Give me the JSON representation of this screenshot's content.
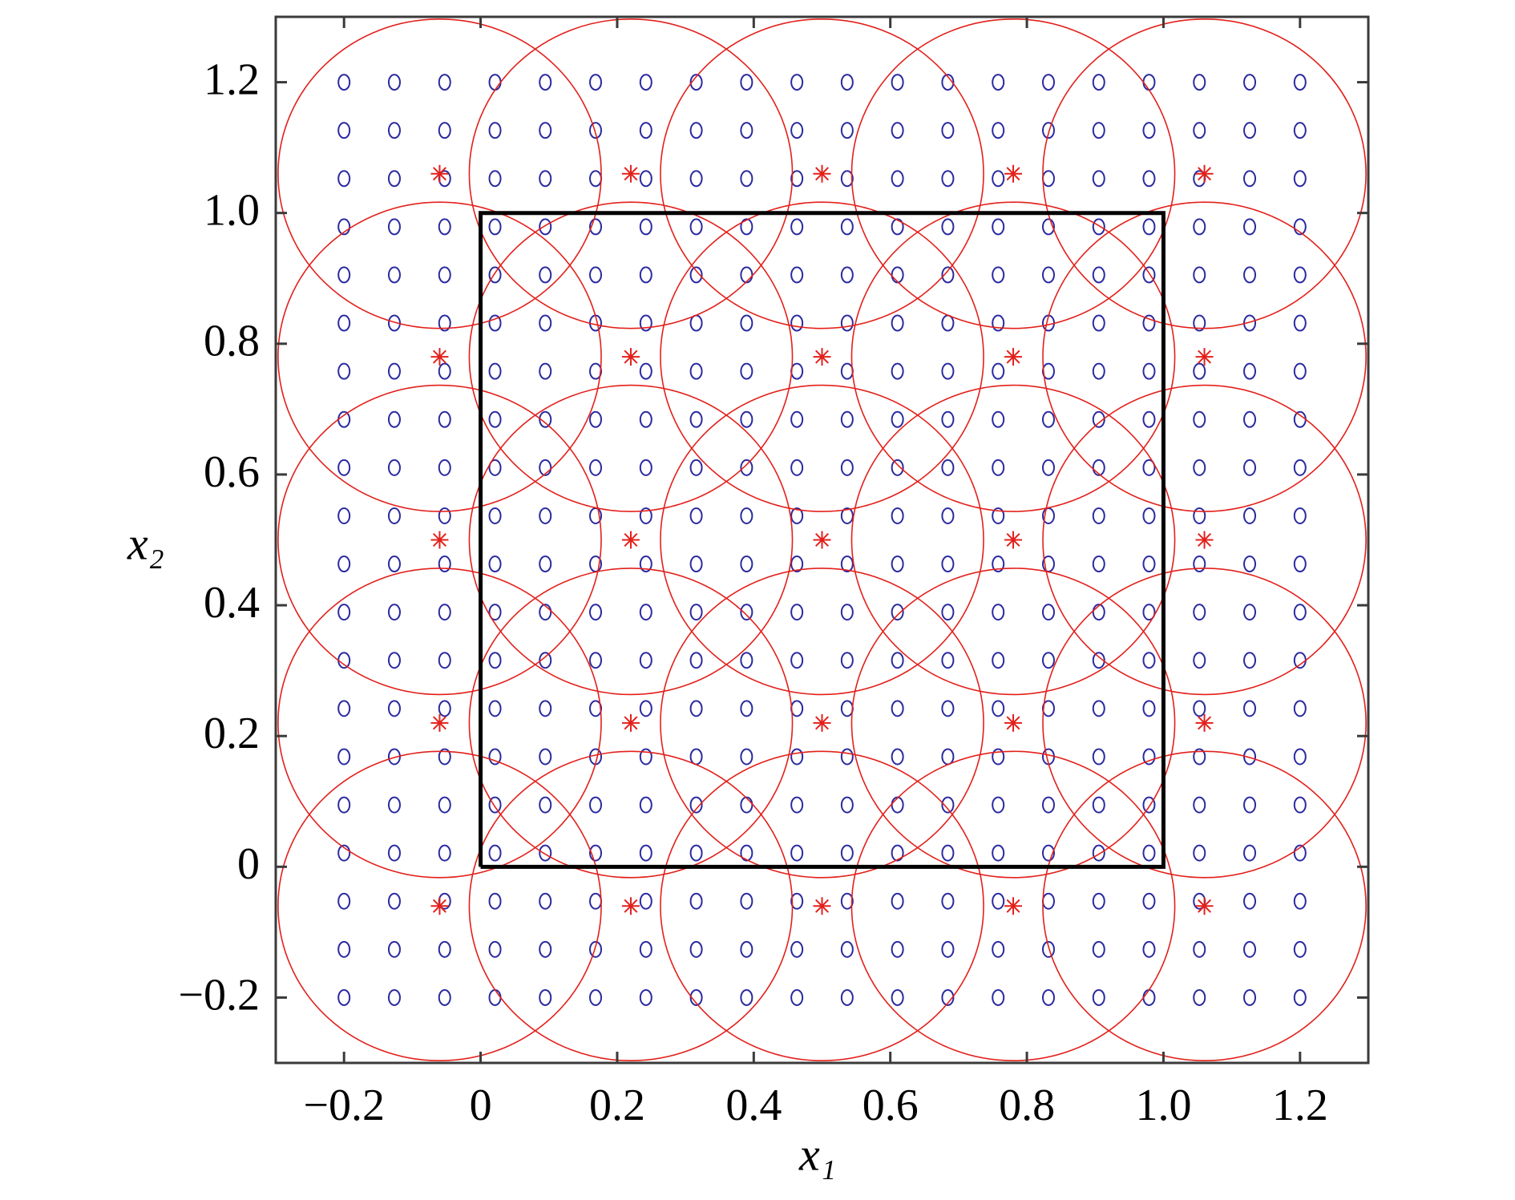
{
  "chart_data": {
    "type": "scatter",
    "xlabel": "x₁",
    "ylabel": "x₂",
    "xlim": [
      -0.3,
      1.3
    ],
    "ylim": [
      -0.3,
      1.3
    ],
    "xticks": [
      {
        "value": -0.2,
        "label": "−0.2"
      },
      0,
      0.2,
      0.4,
      0.6,
      0.8,
      {
        "value": 1,
        "label": "1.0"
      },
      1.2
    ],
    "yticks": [
      {
        "value": -0.2,
        "label": "−0.2"
      },
      0,
      0.2,
      0.4,
      0.6,
      0.8,
      {
        "value": 1,
        "label": "1.0"
      },
      1.2
    ],
    "grid": false,
    "series": [
      {
        "marker": "o",
        "color": "#2a2aa0",
        "x": [
          -0.2,
          -0.1263,
          -0.0526,
          0.0211,
          0.0947,
          0.1684,
          0.2421,
          0.3158,
          0.3895,
          0.4632,
          0.5368,
          0.6105,
          0.6842,
          0.7579,
          0.8316,
          0.9053,
          0.9789,
          1.0526,
          1.1263,
          1.2,
          -0.2,
          -0.1263,
          -0.0526,
          0.0211,
          0.0947,
          0.1684,
          0.2421,
          0.3158,
          0.3895,
          0.4632,
          0.5368,
          0.6105,
          0.6842,
          0.7579,
          0.8316,
          0.9053,
          0.9789,
          1.0526,
          1.1263,
          1.2,
          -0.2,
          -0.1263,
          -0.0526,
          0.0211,
          0.0947,
          0.1684,
          0.2421,
          0.3158,
          0.3895,
          0.4632,
          0.5368,
          0.6105,
          0.6842,
          0.7579,
          0.8316,
          0.9053,
          0.9789,
          1.0526,
          1.1263,
          1.2,
          -0.2,
          -0.1263,
          -0.0526,
          0.0211,
          0.0947,
          0.1684,
          0.2421,
          0.3158,
          0.3895,
          0.4632,
          0.5368,
          0.6105,
          0.6842,
          0.7579,
          0.8316,
          0.9053,
          0.9789,
          1.0526,
          1.1263,
          1.2,
          -0.2,
          -0.1263,
          -0.0526,
          0.0211,
          0.0947,
          0.1684,
          0.2421,
          0.3158,
          0.3895,
          0.4632,
          0.5368,
          0.6105,
          0.6842,
          0.7579,
          0.8316,
          0.9053,
          0.9789,
          1.0526,
          1.1263,
          1.2,
          -0.2,
          -0.1263,
          -0.0526,
          0.0211,
          0.0947,
          0.1684,
          0.2421,
          0.3158,
          0.3895,
          0.4632,
          0.5368,
          0.6105,
          0.6842,
          0.7579,
          0.8316,
          0.9053,
          0.9789,
          1.0526,
          1.1263,
          1.2,
          -0.2,
          -0.1263,
          -0.0526,
          0.0211,
          0.0947,
          0.1684,
          0.2421,
          0.3158,
          0.3895,
          0.4632,
          0.5368,
          0.6105,
          0.6842,
          0.7579,
          0.8316,
          0.9053,
          0.9789,
          1.0526,
          1.1263,
          1.2,
          -0.2,
          -0.1263,
          -0.0526,
          0.0211,
          0.0947,
          0.1684,
          0.2421,
          0.3158,
          0.3895,
          0.4632,
          0.5368,
          0.6105,
          0.6842,
          0.7579,
          0.8316,
          0.9053,
          0.9789,
          1.0526,
          1.1263,
          1.2,
          -0.2,
          -0.1263,
          -0.0526,
          0.0211,
          0.0947,
          0.1684,
          0.2421,
          0.3158,
          0.3895,
          0.4632,
          0.5368,
          0.6105,
          0.6842,
          0.7579,
          0.8316,
          0.9053,
          0.9789,
          1.0526,
          1.1263,
          1.2,
          -0.2,
          -0.1263,
          -0.0526,
          0.0211,
          0.0947,
          0.1684,
          0.2421,
          0.3158,
          0.3895,
          0.4632,
          0.5368,
          0.6105,
          0.6842,
          0.7579,
          0.8316,
          0.9053,
          0.9789,
          1.0526,
          1.1263,
          1.2,
          -0.2,
          -0.1263,
          -0.0526,
          0.0211,
          0.0947,
          0.1684,
          0.2421,
          0.3158,
          0.3895,
          0.4632,
          0.5368,
          0.6105,
          0.6842,
          0.7579,
          0.8316,
          0.9053,
          0.9789,
          1.0526,
          1.1263,
          1.2,
          -0.2,
          -0.1263,
          -0.0526,
          0.0211,
          0.0947,
          0.1684,
          0.2421,
          0.3158,
          0.3895,
          0.4632,
          0.5368,
          0.6105,
          0.6842,
          0.7579,
          0.8316,
          0.9053,
          0.9789,
          1.0526,
          1.1263,
          1.2,
          -0.2,
          -0.1263,
          -0.0526,
          0.0211,
          0.0947,
          0.1684,
          0.2421,
          0.3158,
          0.3895,
          0.4632,
          0.5368,
          0.6105,
          0.6842,
          0.7579,
          0.8316,
          0.9053,
          0.9789,
          1.0526,
          1.1263,
          1.2,
          -0.2,
          -0.1263,
          -0.0526,
          0.0211,
          0.0947,
          0.1684,
          0.2421,
          0.3158,
          0.3895,
          0.4632,
          0.5368,
          0.6105,
          0.6842,
          0.7579,
          0.8316,
          0.9053,
          0.9789,
          1.0526,
          1.1263,
          1.2,
          -0.2,
          -0.1263,
          -0.0526,
          0.0211,
          0.0947,
          0.1684,
          0.2421,
          0.3158,
          0.3895,
          0.4632,
          0.5368,
          0.6105,
          0.6842,
          0.7579,
          0.8316,
          0.9053,
          0.9789,
          1.0526,
          1.1263,
          1.2,
          -0.2,
          -0.1263,
          -0.0526,
          0.0211,
          0.0947,
          0.1684,
          0.2421,
          0.3158,
          0.3895,
          0.4632,
          0.5368,
          0.6105,
          0.6842,
          0.7579,
          0.8316,
          0.9053,
          0.9789,
          1.0526,
          1.1263,
          1.2,
          -0.2,
          -0.1263,
          -0.0526,
          0.0211,
          0.0947,
          0.1684,
          0.2421,
          0.3158,
          0.3895,
          0.4632,
          0.5368,
          0.6105,
          0.6842,
          0.7579,
          0.8316,
          0.9053,
          0.9789,
          1.0526,
          1.1263,
          1.2,
          -0.2,
          -0.1263,
          -0.0526,
          0.0211,
          0.0947,
          0.1684,
          0.2421,
          0.3158,
          0.3895,
          0.4632,
          0.5368,
          0.6105,
          0.6842,
          0.7579,
          0.8316,
          0.9053,
          0.9789,
          1.0526,
          1.1263,
          1.2,
          -0.2,
          -0.1263,
          -0.0526,
          0.0211,
          0.0947,
          0.1684,
          0.2421,
          0.3158,
          0.3895,
          0.4632,
          0.5368,
          0.6105,
          0.6842,
          0.7579,
          0.8316,
          0.9053,
          0.9789,
          1.0526,
          1.1263,
          1.2,
          -0.2,
          -0.1263,
          -0.0526,
          0.0211,
          0.0947,
          0.1684,
          0.2421,
          0.3158,
          0.3895,
          0.4632,
          0.5368,
          0.6105,
          0.6842,
          0.7579,
          0.8316,
          0.9053,
          0.9789,
          1.0526,
          1.1263,
          1.2
        ],
        "values": [
          -0.2,
          -0.2,
          -0.2,
          -0.2,
          -0.2,
          -0.2,
          -0.2,
          -0.2,
          -0.2,
          -0.2,
          -0.2,
          -0.2,
          -0.2,
          -0.2,
          -0.2,
          -0.2,
          -0.2,
          -0.2,
          -0.2,
          -0.2,
          -0.1263,
          -0.1263,
          -0.1263,
          -0.1263,
          -0.1263,
          -0.1263,
          -0.1263,
          -0.1263,
          -0.1263,
          -0.1263,
          -0.1263,
          -0.1263,
          -0.1263,
          -0.1263,
          -0.1263,
          -0.1263,
          -0.1263,
          -0.1263,
          -0.1263,
          -0.1263,
          -0.0526,
          -0.0526,
          -0.0526,
          -0.0526,
          -0.0526,
          -0.0526,
          -0.0526,
          -0.0526,
          -0.0526,
          -0.0526,
          -0.0526,
          -0.0526,
          -0.0526,
          -0.0526,
          -0.0526,
          -0.0526,
          -0.0526,
          -0.0526,
          -0.0526,
          -0.0526,
          0.0211,
          0.0211,
          0.0211,
          0.0211,
          0.0211,
          0.0211,
          0.0211,
          0.0211,
          0.0211,
          0.0211,
          0.0211,
          0.0211,
          0.0211,
          0.0211,
          0.0211,
          0.0211,
          0.0211,
          0.0211,
          0.0211,
          0.0211,
          0.0947,
          0.0947,
          0.0947,
          0.0947,
          0.0947,
          0.0947,
          0.0947,
          0.0947,
          0.0947,
          0.0947,
          0.0947,
          0.0947,
          0.0947,
          0.0947,
          0.0947,
          0.0947,
          0.0947,
          0.0947,
          0.0947,
          0.0947,
          0.1684,
          0.1684,
          0.1684,
          0.1684,
          0.1684,
          0.1684,
          0.1684,
          0.1684,
          0.1684,
          0.1684,
          0.1684,
          0.1684,
          0.1684,
          0.1684,
          0.1684,
          0.1684,
          0.1684,
          0.1684,
          0.1684,
          0.1684,
          0.2421,
          0.2421,
          0.2421,
          0.2421,
          0.2421,
          0.2421,
          0.2421,
          0.2421,
          0.2421,
          0.2421,
          0.2421,
          0.2421,
          0.2421,
          0.2421,
          0.2421,
          0.2421,
          0.2421,
          0.2421,
          0.2421,
          0.2421,
          0.3158,
          0.3158,
          0.3158,
          0.3158,
          0.3158,
          0.3158,
          0.3158,
          0.3158,
          0.3158,
          0.3158,
          0.3158,
          0.3158,
          0.3158,
          0.3158,
          0.3158,
          0.3158,
          0.3158,
          0.3158,
          0.3158,
          0.3158,
          0.3895,
          0.3895,
          0.3895,
          0.3895,
          0.3895,
          0.3895,
          0.3895,
          0.3895,
          0.3895,
          0.3895,
          0.3895,
          0.3895,
          0.3895,
          0.3895,
          0.3895,
          0.3895,
          0.3895,
          0.3895,
          0.3895,
          0.3895,
          0.4632,
          0.4632,
          0.4632,
          0.4632,
          0.4632,
          0.4632,
          0.4632,
          0.4632,
          0.4632,
          0.4632,
          0.4632,
          0.4632,
          0.4632,
          0.4632,
          0.4632,
          0.4632,
          0.4632,
          0.4632,
          0.4632,
          0.4632,
          0.5368,
          0.5368,
          0.5368,
          0.5368,
          0.5368,
          0.5368,
          0.5368,
          0.5368,
          0.5368,
          0.5368,
          0.5368,
          0.5368,
          0.5368,
          0.5368,
          0.5368,
          0.5368,
          0.5368,
          0.5368,
          0.5368,
          0.5368,
          0.6105,
          0.6105,
          0.6105,
          0.6105,
          0.6105,
          0.6105,
          0.6105,
          0.6105,
          0.6105,
          0.6105,
          0.6105,
          0.6105,
          0.6105,
          0.6105,
          0.6105,
          0.6105,
          0.6105,
          0.6105,
          0.6105,
          0.6105,
          0.6842,
          0.6842,
          0.6842,
          0.6842,
          0.6842,
          0.6842,
          0.6842,
          0.6842,
          0.6842,
          0.6842,
          0.6842,
          0.6842,
          0.6842,
          0.6842,
          0.6842,
          0.6842,
          0.6842,
          0.6842,
          0.6842,
          0.6842,
          0.7579,
          0.7579,
          0.7579,
          0.7579,
          0.7579,
          0.7579,
          0.7579,
          0.7579,
          0.7579,
          0.7579,
          0.7579,
          0.7579,
          0.7579,
          0.7579,
          0.7579,
          0.7579,
          0.7579,
          0.7579,
          0.7579,
          0.7579,
          0.8316,
          0.8316,
          0.8316,
          0.8316,
          0.8316,
          0.8316,
          0.8316,
          0.8316,
          0.8316,
          0.8316,
          0.8316,
          0.8316,
          0.8316,
          0.8316,
          0.8316,
          0.8316,
          0.8316,
          0.8316,
          0.8316,
          0.8316,
          0.9053,
          0.9053,
          0.9053,
          0.9053,
          0.9053,
          0.9053,
          0.9053,
          0.9053,
          0.9053,
          0.9053,
          0.9053,
          0.9053,
          0.9053,
          0.9053,
          0.9053,
          0.9053,
          0.9053,
          0.9053,
          0.9053,
          0.9053,
          0.9789,
          0.9789,
          0.9789,
          0.9789,
          0.9789,
          0.9789,
          0.9789,
          0.9789,
          0.9789,
          0.9789,
          0.9789,
          0.9789,
          0.9789,
          0.9789,
          0.9789,
          0.9789,
          0.9789,
          0.9789,
          0.9789,
          0.9789,
          1.0526,
          1.0526,
          1.0526,
          1.0526,
          1.0526,
          1.0526,
          1.0526,
          1.0526,
          1.0526,
          1.0526,
          1.0526,
          1.0526,
          1.0526,
          1.0526,
          1.0526,
          1.0526,
          1.0526,
          1.0526,
          1.0526,
          1.0526,
          1.1263,
          1.1263,
          1.1263,
          1.1263,
          1.1263,
          1.1263,
          1.1263,
          1.1263,
          1.1263,
          1.1263,
          1.1263,
          1.1263,
          1.1263,
          1.1263,
          1.1263,
          1.1263,
          1.1263,
          1.1263,
          1.1263,
          1.1263,
          1.2,
          1.2,
          1.2,
          1.2,
          1.2,
          1.2,
          1.2,
          1.2,
          1.2,
          1.2,
          1.2,
          1.2,
          1.2,
          1.2,
          1.2,
          1.2,
          1.2,
          1.2,
          1.2,
          1.2
        ]
      },
      {
        "marker": "*",
        "color": "#e3201b",
        "radius": 0.2366,
        "x": [
          -0.06,
          0.22,
          0.5,
          0.78,
          1.06,
          -0.06,
          0.22,
          0.5,
          0.78,
          1.06,
          -0.06,
          0.22,
          0.5,
          0.78,
          1.06,
          -0.06,
          0.22,
          0.5,
          0.78,
          1.06,
          -0.06,
          0.22,
          0.5,
          0.78,
          1.06
        ],
        "values": [
          -0.06,
          -0.06,
          -0.06,
          -0.06,
          -0.06,
          0.22,
          0.22,
          0.22,
          0.22,
          0.22,
          0.5,
          0.5,
          0.5,
          0.5,
          0.5,
          0.78,
          0.78,
          0.78,
          0.78,
          0.78,
          1.06,
          1.06,
          1.06,
          1.06,
          1.06
        ]
      },
      {
        "marker": "line",
        "color": "#000000",
        "x": [
          0,
          1,
          1,
          0,
          0
        ],
        "values": [
          0,
          0,
          1,
          1,
          0
        ]
      }
    ]
  }
}
